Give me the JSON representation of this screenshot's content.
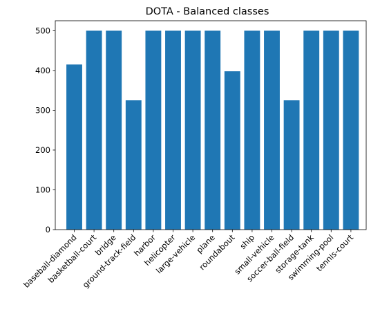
{
  "chart_data": {
    "type": "bar",
    "title": "DOTA - Balanced classes",
    "xlabel": "",
    "ylabel": "",
    "categories": [
      "baseball-diamond",
      "basketball-court",
      "bridge",
      "ground-track-field",
      "harbor",
      "helicopter",
      "large-vehicle",
      "plane",
      "roundabout",
      "ship",
      "small-vehicle",
      "soccer-ball-field",
      "storage-tank",
      "swimming-pool",
      "tennis-court"
    ],
    "values": [
      415,
      500,
      500,
      325,
      500,
      500,
      500,
      500,
      398,
      500,
      500,
      325,
      500,
      500,
      500
    ],
    "ylim": [
      0,
      525
    ],
    "yticks": [
      0,
      100,
      200,
      300,
      400,
      500
    ],
    "grid": false,
    "legend": "none",
    "bar_color": "#1f77b4"
  }
}
